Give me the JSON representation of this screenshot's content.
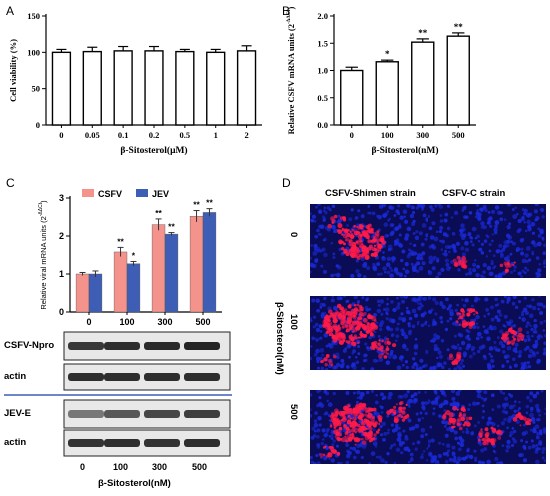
{
  "panel_labels": {
    "a": "A",
    "b": "B",
    "c": "C",
    "d": "D"
  },
  "chart_data": [
    {
      "panel": "A",
      "type": "bar",
      "categories": [
        "0",
        "0.05",
        "0.1",
        "0.2",
        "0.5",
        "1",
        "2"
      ],
      "values": [
        100,
        101,
        102,
        102,
        101,
        100,
        102
      ],
      "errors": [
        4,
        6,
        6,
        6,
        3,
        4,
        7
      ],
      "ylabel": "Cell viability (%)",
      "xlabel": "β-Sitosterol(μM)",
      "ylim": [
        0,
        150
      ],
      "yticks": [
        "0",
        "50",
        "100",
        "150"
      ],
      "color": "#ffffff"
    },
    {
      "panel": "B",
      "type": "bar",
      "categories": [
        "0",
        "100",
        "300",
        "500"
      ],
      "values": [
        1.0,
        1.16,
        1.52,
        1.63
      ],
      "errors": [
        0.06,
        0.03,
        0.06,
        0.06
      ],
      "significance": [
        "",
        "*",
        "**",
        "**"
      ],
      "ylabel": "Relative CSFV mRNA units (2",
      "ylabel_sup": "-ΔΔCt",
      "ylabel_end": ")",
      "xlabel": "β-Sitosterol(nM)",
      "ylim": [
        0,
        2.0
      ],
      "yticks": [
        "0.0",
        "0.5",
        "1.0",
        "1.5",
        "2.0"
      ],
      "color": "#ffffff"
    },
    {
      "panel": "C",
      "type": "bar",
      "categories": [
        "0",
        "100",
        "300",
        "500"
      ],
      "series": [
        {
          "name": "CSFV",
          "values": [
            1.0,
            1.58,
            2.3,
            2.52
          ],
          "errors": [
            0.04,
            0.12,
            0.15,
            0.15
          ],
          "significance": [
            "",
            "**",
            "**",
            "**"
          ],
          "color": "#f4938b"
        },
        {
          "name": "JEV",
          "values": [
            1.0,
            1.27,
            2.05,
            2.62
          ],
          "errors": [
            0.08,
            0.06,
            0.04,
            0.1
          ],
          "significance": [
            "",
            "*",
            "**",
            "**"
          ],
          "color": "#3e5eb5"
        }
      ],
      "ylabel": "Relative viral mRNA units (2",
      "ylabel_sup": "-ΔΔCt",
      "ylabel_end": ")",
      "ylim": [
        0,
        3
      ],
      "yticks": [
        "0",
        "1",
        "2",
        "3"
      ]
    }
  ],
  "blots": {
    "rows": [
      {
        "label": "CSFV-Npro"
      },
      {
        "label": "actin"
      },
      {
        "label": "JEV-E"
      },
      {
        "label": "actin"
      }
    ],
    "lanes": [
      "0",
      "100",
      "300",
      "500"
    ],
    "xlabel": "β-Sitosterol(nM)"
  },
  "microscopy": {
    "columns": [
      "CSFV-Shimen strain",
      "CSFV-C strain"
    ],
    "rows": [
      "0",
      "100",
      "500"
    ],
    "row_axis_label": "β-Sitosterol(nM)",
    "nuclei_color": "#1a2ad8",
    "infection_color": "#ff1a4a"
  }
}
